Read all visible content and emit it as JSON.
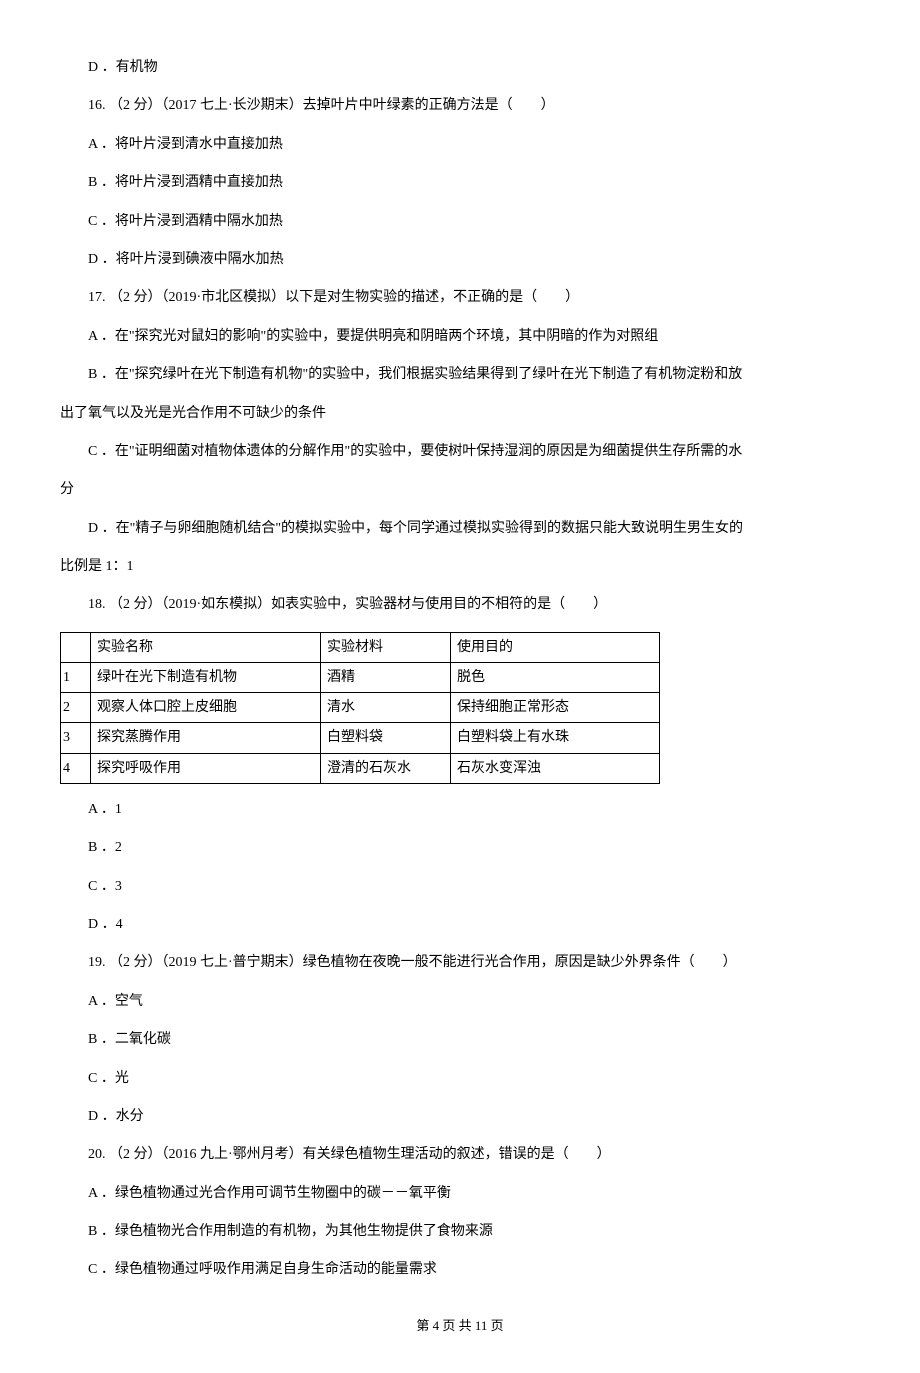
{
  "q15": {
    "optD": "D ．有机物"
  },
  "q16": {
    "stem": "16. （2 分）（2017 七上·长沙期末）去掉叶片中叶绿素的正确方法是（　　）",
    "optA": "A ．将叶片浸到清水中直接加热",
    "optB": "B ．将叶片浸到酒精中直接加热",
    "optC": "C ．将叶片浸到酒精中隔水加热",
    "optD": "D ．将叶片浸到碘液中隔水加热"
  },
  "q17": {
    "stem": "17. （2 分）（2019·市北区模拟）以下是对生物实验的描述，不正确的是（　　）",
    "optA": "A ．在\"探究光对鼠妇的影响\"的实验中，要提供明亮和阴暗两个环境，其中阴暗的作为对照组",
    "optB_line1": "B ．在\"探究绿叶在光下制造有机物\"的实验中，我们根据实验结果得到了绿叶在光下制造了有机物淀粉和放",
    "optB_line2": "出了氧气以及光是光合作用不可缺少的条件",
    "optC_line1": "C ．在\"证明细菌对植物体遗体的分解作用\"的实验中，要使树叶保持湿润的原因是为细菌提供生存所需的水",
    "optC_line2": "分",
    "optD_line1": "D ．在\"精子与卵细胞随机结合\"的模拟实验中，每个同学通过模拟实验得到的数据只能大致说明生男生女的",
    "optD_line2": "比例是 1：1"
  },
  "q18": {
    "stem": "18. （2 分）（2019·如东模拟）如表实验中，实验器材与使用目的不相符的是（　　）",
    "table": {
      "header": [
        "",
        "实验名称",
        "实验材料",
        "使用目的"
      ],
      "rows": [
        [
          "1",
          "绿叶在光下制造有机物",
          "酒精",
          "脱色"
        ],
        [
          "2",
          "观察人体口腔上皮细胞",
          "清水",
          "保持细胞正常形态"
        ],
        [
          "3",
          "探究蒸腾作用",
          "白塑料袋",
          "白塑料袋上有水珠"
        ],
        [
          "4",
          "探究呼吸作用",
          "澄清的石灰水",
          "石灰水变浑浊"
        ]
      ]
    },
    "optA": "A ．1",
    "optB": "B ．2",
    "optC": "C ．3",
    "optD": "D ．4"
  },
  "q19": {
    "stem": "19. （2 分）（2019 七上·普宁期末）绿色植物在夜晚一般不能进行光合作用，原因是缺少外界条件（　　）",
    "optA": "A ．空气",
    "optB": "B ．二氧化碳",
    "optC": "C ．光",
    "optD": "D ．水分"
  },
  "q20": {
    "stem": "20. （2 分）（2016 九上·鄂州月考）有关绿色植物生理活动的叙述，错误的是（　　）",
    "optA": "A ．绿色植物通过光合作用可调节生物圈中的碳－－氧平衡",
    "optB": "B ．绿色植物光合作用制造的有机物，为其他生物提供了食物来源",
    "optC": "C ．绿色植物通过呼吸作用满足自身生命活动的能量需求"
  },
  "footer": "第 4 页 共 11 页"
}
